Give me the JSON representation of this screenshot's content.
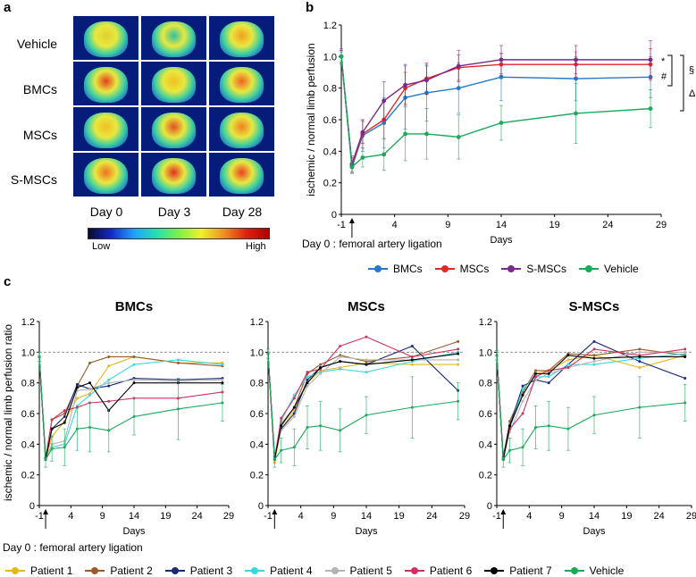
{
  "panel_a": {
    "letter": "a",
    "rows": [
      "Vehicle",
      "BMCs",
      "MSCs",
      "S-MSCs"
    ],
    "days": [
      "Day 0",
      "Day 3",
      "Day 28"
    ],
    "colorbar_low": "Low",
    "colorbar_high": "High"
  },
  "panel_b": {
    "letter": "b"
  },
  "panel_c": {
    "letter": "c"
  },
  "footer_note": "Day 0 : femoral artery ligation",
  "colors": {
    "BMCs": "#2878c8",
    "MSCs": "#e02828",
    "S-MSCs": "#7a2a8a",
    "Vehicle": "#1aaa5a",
    "Patient 1": "#e6b820",
    "Patient 2": "#9a5a2a",
    "Patient 3": "#1a2a78",
    "Patient 4": "#38d8e0",
    "Patient 5": "#b4b4b4",
    "Patient 6": "#d03060",
    "Patient 7": "#000000"
  },
  "chart_data": [
    {
      "type": "line",
      "id": "b",
      "title": "",
      "xlabel": "Days",
      "ylabel": "ischemic / normal limb perfusion",
      "annotation": "Day 0 : femoral artery ligation",
      "x_ticks": [
        -1,
        4,
        9,
        14,
        19,
        24,
        29
      ],
      "x_tick_labels": [
        "-1",
        "4",
        "9",
        "14",
        "19",
        "24",
        "29"
      ],
      "alt_x_ticks": [
        -1,
        4,
        9,
        14,
        19,
        24,
        29
      ],
      "y_ticks": [
        0,
        0.2,
        0.4,
        0.6,
        0.8,
        1.0,
        1.2
      ],
      "y_tick_labels": [
        "0",
        "0.2",
        "0.4",
        "0.6",
        "0.8",
        "1.0",
        "1.2"
      ],
      "xlim": [
        -1,
        29
      ],
      "ylim": [
        0,
        1.2
      ],
      "x": [
        -1,
        0,
        1,
        3,
        5,
        7,
        10,
        14,
        21,
        28
      ],
      "series": [
        {
          "name": "BMCs",
          "values": [
            1.0,
            0.3,
            0.5,
            0.58,
            0.74,
            0.77,
            0.8,
            0.87,
            0.86,
            0.87
          ],
          "err": [
            0.05,
            0.04,
            0.1,
            0.16,
            0.2,
            0.18,
            0.16,
            0.15,
            0.14,
            0.13
          ]
        },
        {
          "name": "MSCs",
          "values": [
            1.0,
            0.31,
            0.51,
            0.6,
            0.8,
            0.86,
            0.93,
            0.95,
            0.95,
            0.95
          ],
          "err": [
            0.04,
            0.05,
            0.09,
            0.12,
            0.1,
            0.1,
            0.08,
            0.07,
            0.08,
            0.1
          ]
        },
        {
          "name": "S-MSCs",
          "values": [
            1.0,
            0.32,
            0.52,
            0.72,
            0.82,
            0.85,
            0.94,
            0.98,
            0.98,
            0.98
          ],
          "err": [
            0.04,
            0.05,
            0.07,
            0.12,
            0.13,
            0.09,
            0.1,
            0.09,
            0.09,
            0.12
          ]
        },
        {
          "name": "Vehicle",
          "values": [
            1.0,
            0.3,
            0.36,
            0.38,
            0.51,
            0.51,
            0.49,
            0.58,
            0.64,
            0.67
          ],
          "err": [
            0.03,
            0.04,
            0.06,
            0.1,
            0.17,
            0.16,
            0.14,
            0.11,
            0.19,
            0.12
          ]
        }
      ],
      "significance_marks": [
        "*",
        "#",
        "§",
        "Δ"
      ],
      "legend": [
        "BMCs",
        "MSCs",
        "S-MSCs",
        "Vehicle"
      ]
    },
    {
      "type": "line",
      "id": "c-BMCs",
      "title": "BMCs",
      "xlabel": "Days",
      "ylabel": "ischemic / normal limb perfusion ratio",
      "x_tick_labels": [
        "-1",
        "4",
        "9",
        "14",
        "19",
        "24",
        "29"
      ],
      "y_tick_labels": [
        "0",
        "0.2",
        "0.4",
        "0.6",
        "0.8",
        "1.0",
        "1.2"
      ],
      "xlim": [
        -1,
        29
      ],
      "ylim": [
        0,
        1.2
      ],
      "x": [
        -1,
        0,
        1,
        3,
        5,
        7,
        10,
        14,
        21,
        28
      ],
      "series": [
        {
          "name": "Patient 1",
          "values": [
            0.97,
            0.3,
            0.45,
            0.55,
            0.7,
            0.73,
            0.91,
            0.97,
            0.93,
            0.93
          ]
        },
        {
          "name": "Patient 2",
          "values": [
            0.97,
            0.31,
            0.56,
            0.6,
            0.78,
            0.93,
            0.97,
            0.97,
            0.93,
            0.91
          ]
        },
        {
          "name": "Patient 3",
          "values": [
            0.97,
            0.31,
            0.5,
            0.58,
            0.79,
            0.76,
            0.78,
            0.83,
            0.82,
            0.83
          ]
        },
        {
          "name": "Patient 4",
          "values": [
            0.97,
            0.32,
            0.38,
            0.4,
            0.65,
            0.72,
            0.82,
            0.92,
            0.95,
            0.92
          ]
        },
        {
          "name": "Patient 5",
          "values": [
            0.97,
            0.3,
            0.4,
            0.42,
            0.75,
            0.76,
            0.8,
            0.82,
            0.81,
            0.82
          ]
        },
        {
          "name": "Patient 6",
          "values": [
            0.97,
            0.3,
            0.56,
            0.62,
            0.64,
            0.67,
            0.68,
            0.7,
            0.7,
            0.74
          ]
        },
        {
          "name": "Patient 7",
          "values": [
            0.97,
            0.3,
            0.5,
            0.54,
            0.77,
            0.8,
            0.62,
            0.8,
            0.8,
            0.8
          ]
        },
        {
          "name": "Vehicle",
          "values": [
            0.97,
            0.3,
            0.37,
            0.38,
            0.5,
            0.51,
            0.49,
            0.58,
            0.63,
            0.67
          ],
          "err": [
            0.03,
            0.05,
            0.08,
            0.12,
            0.14,
            0.16,
            0.14,
            0.12,
            0.2,
            0.12
          ]
        }
      ]
    },
    {
      "type": "line",
      "id": "c-MSCs",
      "title": "MSCs",
      "xlabel": "Days",
      "x_tick_labels": [
        "-1",
        "4",
        "9",
        "14",
        "19",
        "24",
        "29"
      ],
      "y_tick_labels": [
        "0",
        "0.2",
        "0.4",
        "0.6",
        "0.8",
        "1.0",
        "1.2"
      ],
      "xlim": [
        -1,
        29
      ],
      "ylim": [
        0,
        1.2
      ],
      "x": [
        -1,
        0,
        1,
        3,
        5,
        7,
        10,
        14,
        21,
        28
      ],
      "series": [
        {
          "name": "Patient 1",
          "values": [
            0.99,
            0.28,
            0.5,
            0.62,
            0.8,
            0.88,
            0.9,
            0.93,
            0.92,
            0.92
          ]
        },
        {
          "name": "Patient 2",
          "values": [
            0.99,
            0.3,
            0.53,
            0.64,
            0.86,
            0.92,
            0.98,
            0.94,
            0.97,
            1.07
          ]
        },
        {
          "name": "Patient 3",
          "values": [
            0.99,
            0.32,
            0.5,
            0.6,
            0.82,
            0.9,
            0.94,
            0.92,
            1.04,
            0.75
          ]
        },
        {
          "name": "Patient 4",
          "values": [
            0.99,
            0.31,
            0.55,
            0.72,
            0.84,
            0.87,
            0.89,
            0.87,
            0.94,
            1.0
          ]
        },
        {
          "name": "Patient 5",
          "values": [
            0.99,
            0.3,
            0.49,
            0.58,
            0.78,
            0.86,
            0.97,
            0.95,
            0.95,
            0.95
          ]
        },
        {
          "name": "Patient 6",
          "values": [
            0.99,
            0.3,
            0.57,
            0.7,
            0.87,
            0.89,
            1.04,
            1.1,
            0.97,
            1.02
          ]
        },
        {
          "name": "Patient 7",
          "values": [
            0.99,
            0.3,
            0.52,
            0.64,
            0.8,
            0.9,
            0.94,
            0.92,
            0.95,
            0.99
          ]
        },
        {
          "name": "Vehicle",
          "values": [
            0.99,
            0.3,
            0.36,
            0.38,
            0.51,
            0.52,
            0.49,
            0.59,
            0.64,
            0.68
          ],
          "err": [
            0.03,
            0.05,
            0.08,
            0.12,
            0.14,
            0.16,
            0.14,
            0.12,
            0.2,
            0.12
          ]
        }
      ]
    },
    {
      "type": "line",
      "id": "c-S-MSCs",
      "title": "S-MSCs",
      "xlabel": "Days",
      "x_tick_labels": [
        "-1",
        "4",
        "9",
        "14",
        "19",
        "24",
        "29"
      ],
      "y_tick_labels": [
        "0",
        "0.2",
        "0.4",
        "0.6",
        "0.8",
        "1.0",
        "1.2"
      ],
      "xlim": [
        -1,
        29
      ],
      "ylim": [
        0,
        1.2
      ],
      "x": [
        -1,
        0,
        1,
        3,
        5,
        7,
        10,
        14,
        21,
        28
      ],
      "series": [
        {
          "name": "Patient 1",
          "values": [
            0.98,
            0.3,
            0.52,
            0.72,
            0.86,
            0.88,
            0.95,
            0.98,
            0.9,
            0.98
          ]
        },
        {
          "name": "Patient 2",
          "values": [
            0.98,
            0.31,
            0.55,
            0.74,
            0.88,
            0.88,
            0.99,
            0.98,
            1.02,
            0.98
          ]
        },
        {
          "name": "Patient 3",
          "values": [
            0.98,
            0.32,
            0.52,
            0.78,
            0.82,
            0.8,
            0.92,
            1.07,
            0.94,
            0.83
          ]
        },
        {
          "name": "Patient 4",
          "values": [
            0.98,
            0.3,
            0.5,
            0.76,
            0.84,
            0.84,
            0.92,
            0.92,
            0.96,
            0.99
          ]
        },
        {
          "name": "Patient 5",
          "values": [
            0.98,
            0.31,
            0.48,
            0.68,
            0.82,
            0.86,
            0.9,
            0.94,
            1.0,
            1.0
          ]
        },
        {
          "name": "Patient 6",
          "values": [
            0.98,
            0.3,
            0.5,
            0.6,
            0.84,
            0.88,
            0.9,
            1.02,
            0.98,
            1.02
          ]
        },
        {
          "name": "Patient 7",
          "values": [
            0.98,
            0.3,
            0.52,
            0.72,
            0.86,
            0.86,
            0.98,
            0.96,
            0.97,
            0.97
          ]
        },
        {
          "name": "Vehicle",
          "values": [
            0.98,
            0.3,
            0.36,
            0.38,
            0.51,
            0.52,
            0.5,
            0.59,
            0.64,
            0.67
          ],
          "err": [
            0.03,
            0.05,
            0.08,
            0.12,
            0.14,
            0.16,
            0.14,
            0.12,
            0.2,
            0.12
          ]
        }
      ]
    }
  ],
  "legend_b": [
    "BMCs",
    "MSCs",
    "S-MSCs",
    "Vehicle"
  ],
  "legend_c": [
    "Patient 1",
    "Patient 2",
    "Patient 3",
    "Patient 4",
    "Patient 5",
    "Patient 6",
    "Patient 7",
    "Vehicle"
  ]
}
